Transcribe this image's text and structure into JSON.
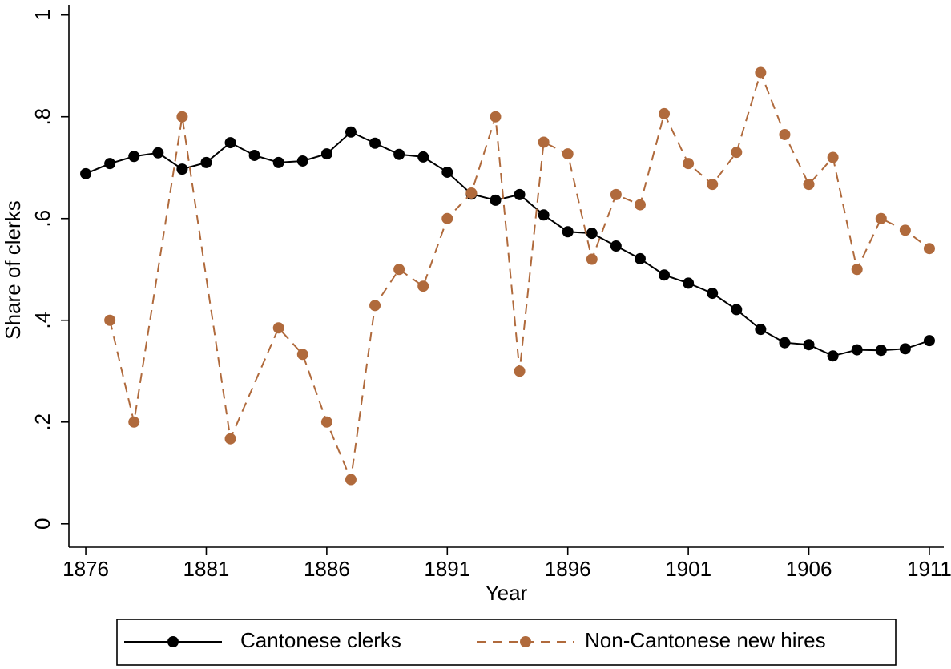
{
  "chart_data": {
    "type": "line",
    "xlabel": "Year",
    "ylabel": "Share of clerks",
    "xlim": [
      1875.3,
      1911.6
    ],
    "xticks": [
      1876,
      1881,
      1886,
      1891,
      1896,
      1901,
      1906,
      1911
    ],
    "ylim": [
      -0.046,
      1.02
    ],
    "yticks": [
      0,
      {
        "value": 0.2,
        "label": ".2"
      },
      {
        "value": 0.4,
        "label": ".4"
      },
      {
        "value": 0.6,
        "label": ".6"
      },
      {
        "value": 0.8,
        "label": ".8"
      },
      1
    ],
    "grid": false,
    "legend": "bottom",
    "series": [
      {
        "name": "Cantonese clerks",
        "color": "#000000",
        "dashed": false,
        "x": [
          1876,
          1877,
          1878,
          1879,
          1880,
          1881,
          1882,
          1883,
          1884,
          1885,
          1886,
          1887,
          1888,
          1889,
          1890,
          1891,
          1892,
          1893,
          1894,
          1895,
          1896,
          1897,
          1898,
          1899,
          1900,
          1901,
          1902,
          1903,
          1904,
          1905,
          1906,
          1907,
          1908,
          1909,
          1910,
          1911
        ],
        "values": [
          0.688,
          0.708,
          0.722,
          0.729,
          0.697,
          0.71,
          0.749,
          0.724,
          0.71,
          0.713,
          0.727,
          0.77,
          0.748,
          0.726,
          0.721,
          0.691,
          0.648,
          0.636,
          0.647,
          0.607,
          0.574,
          0.571,
          0.546,
          0.521,
          0.489,
          0.473,
          0.453,
          0.421,
          0.382,
          0.356,
          0.352,
          0.33,
          0.342,
          0.341,
          0.344,
          0.36
        ]
      },
      {
        "name": "Non-Cantonese new hires",
        "color": "#b06a3c",
        "dashed": true,
        "x": [
          1877,
          1878,
          1880,
          1882,
          1884,
          1885,
          1886,
          1887,
          1888,
          1889,
          1890,
          1891,
          1892,
          1893,
          1894,
          1895,
          1896,
          1897,
          1898,
          1899,
          1900,
          1901,
          1902,
          1903,
          1904,
          1905,
          1906,
          1907,
          1908,
          1909,
          1910,
          1911
        ],
        "values": [
          0.4,
          0.2,
          0.8,
          0.167,
          0.385,
          0.333,
          0.2,
          0.087,
          0.429,
          0.5,
          0.467,
          0.6,
          0.65,
          0.8,
          0.3,
          0.75,
          0.727,
          0.52,
          0.647,
          0.627,
          0.806,
          0.708,
          0.667,
          0.73,
          0.887,
          0.765,
          0.667,
          0.72,
          0.5,
          0.6,
          0.577,
          0.541
        ]
      }
    ]
  }
}
